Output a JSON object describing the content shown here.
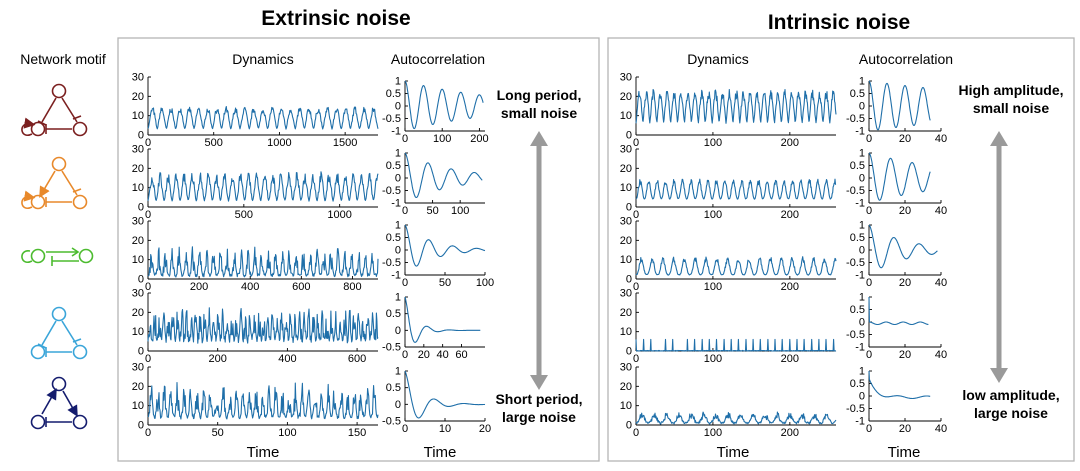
{
  "colors": {
    "trace": "#1f6fa9",
    "arrow": "#9a9a9a",
    "motif": [
      "#7b1f1f",
      "#e8892b",
      "#4cbb2f",
      "#3aa5d9",
      "#141c6e"
    ]
  },
  "motif_header": "Network motif",
  "motif_icons": [
    "motif-repressilator-selfloop",
    "motif-incoherent-feedforward",
    "motif-two-node-feedback",
    "motif-repressilator",
    "motif-activator-feedback"
  ],
  "panels": [
    {
      "title": "Extrinsic noise",
      "dyn_header": "Dynamics",
      "ac_header": "Autocorrelation",
      "dyn_xlabel": "Time",
      "ac_xlabel": "Time",
      "note_top": [
        "Long period,",
        "small noise"
      ],
      "note_bottom": [
        "Short period,",
        "large noise"
      ]
    },
    {
      "title": "Intrinsic noise",
      "dyn_header": "Dynamics",
      "ac_header": "Autocorrelation",
      "dyn_xlabel": "Time",
      "ac_xlabel": "Time",
      "note_top": [
        "High amplitude,",
        "small noise"
      ],
      "note_bottom": [
        "low amplitude,",
        "large noise"
      ]
    }
  ],
  "chart_data": [
    {
      "panel": "Extrinsic noise",
      "rows": [
        {
          "dynamics": {
            "type": "line",
            "xlim": [
              0,
              1750
            ],
            "ylim": [
              0,
              30
            ],
            "xticks": [
              0,
              500,
              1000,
              1500
            ],
            "yticks": [
              0,
              10,
              20,
              30
            ],
            "period": 70,
            "base": 3,
            "amp": 10,
            "noise": 0.2,
            "spiky": 1.4
          },
          "autocorr": {
            "type": "line",
            "xlim": [
              0,
              215
            ],
            "ylim": [
              -1,
              1
            ],
            "xticks": [
              0,
              100,
              200
            ],
            "yticks": [
              -1,
              -0.5,
              0,
              0.5,
              1
            ],
            "period": 50,
            "decay": 0.004,
            "end": 210
          }
        },
        {
          "dynamics": {
            "type": "line",
            "xlim": [
              0,
              1200
            ],
            "ylim": [
              0,
              30
            ],
            "xticks": [
              0,
              500,
              1000
            ],
            "yticks": [
              0,
              10,
              20,
              30
            ],
            "period": 42,
            "base": 3,
            "amp": 12,
            "noise": 0.3,
            "spiky": 1.6
          },
          "autocorr": {
            "type": "line",
            "xlim": [
              0,
              145
            ],
            "ylim": [
              -1,
              1
            ],
            "xticks": [
              0,
              50,
              100
            ],
            "yticks": [
              -1,
              -0.5,
              0,
              0.5,
              1
            ],
            "period": 42,
            "decay": 0.012,
            "end": 140
          }
        },
        {
          "dynamics": {
            "type": "line",
            "xlim": [
              0,
              900
            ],
            "ylim": [
              0,
              30
            ],
            "xticks": [
              0,
              200,
              400,
              600,
              800
            ],
            "yticks": [
              0,
              10,
              20,
              30
            ],
            "period": 27,
            "base": 1,
            "amp": 9,
            "noise": 0.9,
            "spiky": 3
          },
          "autocorr": {
            "type": "line",
            "xlim": [
              0,
              100
            ],
            "ylim": [
              -1,
              1
            ],
            "xticks": [
              0,
              50,
              100
            ],
            "yticks": [
              -1,
              -0.5,
              0,
              0.5,
              1
            ],
            "period": 30,
            "decay": 0.03,
            "end": 100
          }
        },
        {
          "dynamics": {
            "type": "line",
            "xlim": [
              0,
              660
            ],
            "ylim": [
              0,
              30
            ],
            "xticks": [
              0,
              200,
              400,
              600
            ],
            "yticks": [
              0,
              10,
              20,
              30
            ],
            "period": 13,
            "base": 4,
            "amp": 10,
            "noise": 1,
            "spiky": 1.4
          },
          "autocorr": {
            "type": "line",
            "xlim": [
              0,
              85
            ],
            "ylim": [
              -0.5,
              1
            ],
            "xticks": [
              0,
              20,
              40,
              60
            ],
            "yticks": [
              -0.5,
              0,
              0.5,
              1
            ],
            "period": 24,
            "decay": 0.09,
            "end": 80
          }
        },
        {
          "dynamics": {
            "type": "line",
            "xlim": [
              0,
              165
            ],
            "ylim": [
              0,
              30
            ],
            "xticks": [
              0,
              50,
              100,
              150
            ],
            "yticks": [
              0,
              10,
              20,
              30
            ],
            "period": 4.7,
            "base": 3,
            "amp": 11,
            "noise": 0.9,
            "spiky": 2.5
          },
          "autocorr": {
            "type": "line",
            "xlim": [
              0,
              20
            ],
            "ylim": [
              -0.5,
              1
            ],
            "xticks": [
              0,
              10,
              20
            ],
            "yticks": [
              -0.5,
              0,
              0.5,
              1
            ],
            "period": 7.5,
            "decay": 0.25,
            "end": 20
          }
        }
      ]
    },
    {
      "panel": "Intrinsic noise",
      "rows": [
        {
          "dynamics": {
            "type": "line",
            "xlim": [
              0,
              260
            ],
            "ylim": [
              0,
              30
            ],
            "xticks": [
              0,
              100,
              200
            ],
            "yticks": [
              0,
              10,
              20,
              30
            ],
            "period": 9,
            "base": 6,
            "amp": 15,
            "noise": 0.2,
            "spiky": 1.2
          },
          "autocorr": {
            "type": "line",
            "xlim": [
              0,
              40
            ],
            "ylim": [
              -1,
              1
            ],
            "xticks": [
              0,
              20,
              40
            ],
            "yticks": [
              -1,
              -0.5,
              0,
              0.5,
              1
            ],
            "period": 10,
            "decay": 0.01,
            "end": 34
          }
        },
        {
          "dynamics": {
            "type": "line",
            "xlim": [
              0,
              260
            ],
            "ylim": [
              0,
              30
            ],
            "xticks": [
              0,
              100,
              200
            ],
            "yticks": [
              0,
              10,
              20,
              30
            ],
            "period": 11,
            "base": 4,
            "amp": 9,
            "noise": 0.2,
            "spiky": 2.2
          },
          "autocorr": {
            "type": "line",
            "xlim": [
              0,
              40
            ],
            "ylim": [
              -1,
              1
            ],
            "xticks": [
              0,
              20,
              40
            ],
            "yticks": [
              -1,
              -0.5,
              0,
              0.5,
              1
            ],
            "period": 12,
            "decay": 0.02,
            "end": 34
          }
        },
        {
          "dynamics": {
            "type": "line",
            "xlim": [
              0,
              260
            ],
            "ylim": [
              0,
              30
            ],
            "xticks": [
              0,
              100,
              200
            ],
            "yticks": [
              0,
              10,
              20,
              30
            ],
            "period": 14,
            "base": 2,
            "amp": 8,
            "noise": 0.2,
            "spiky": 3
          },
          "autocorr": {
            "type": "line",
            "xlim": [
              0,
              40
            ],
            "ylim": [
              -1,
              1
            ],
            "xticks": [
              0,
              20,
              40
            ],
            "yticks": [
              -1,
              -0.5,
              0,
              0.5,
              1
            ],
            "period": 14,
            "decay": 0.05,
            "end": 38
          }
        },
        {
          "dynamics": {
            "type": "line",
            "xlim": [
              0,
              260
            ],
            "ylim": [
              0,
              30
            ],
            "xticks": [
              0,
              100,
              200
            ],
            "yticks": [
              0,
              10,
              20,
              30
            ],
            "period": 9.5,
            "base": 0,
            "amp": 6,
            "noise": 0.05,
            "spiky": 14
          },
          "autocorr": {
            "type": "line",
            "xlim": [
              0,
              40
            ],
            "ylim": [
              -1,
              1
            ],
            "xticks": [
              0,
              20,
              40
            ],
            "yticks": [
              -1,
              -0.5,
              0,
              0.5,
              1
            ],
            "period": 9.5,
            "decay": 0.01,
            "end": 33,
            "spikeAC": true
          }
        },
        {
          "dynamics": {
            "type": "line",
            "xlim": [
              0,
              260
            ],
            "ylim": [
              0,
              30
            ],
            "xticks": [
              0,
              100,
              200
            ],
            "yticks": [
              0,
              10,
              20,
              30
            ],
            "period": 16,
            "base": 0.5,
            "amp": 4,
            "noise": 0.5,
            "spiky": 2.5
          },
          "autocorr": {
            "type": "line",
            "xlim": [
              0,
              40
            ],
            "ylim": [
              -1,
              1
            ],
            "xticks": [
              0,
              20,
              40
            ],
            "yticks": [
              -1,
              -0.5,
              0,
              0.5,
              1
            ],
            "period": 16,
            "decay": 0.13,
            "end": 34,
            "lowAC": true
          }
        }
      ]
    }
  ]
}
